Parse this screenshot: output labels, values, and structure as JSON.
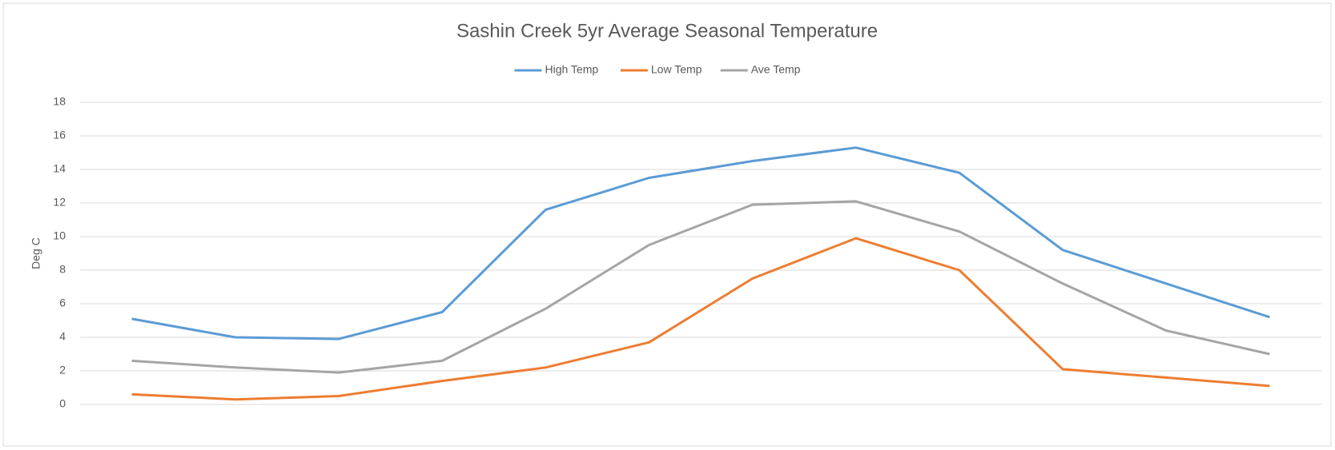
{
  "chart_data": {
    "type": "line",
    "title": "Sashin Creek 5yr Average Seasonal Temperature",
    "y_label": "Deg C",
    "categories": [
      null,
      null,
      null,
      null,
      null,
      null,
      null,
      null,
      null,
      null,
      null,
      null
    ],
    "series": [
      {
        "name": "High Temp",
        "color": "#5b9bd5",
        "values": [
          5.1,
          4.0,
          3.9,
          5.5,
          11.6,
          13.5,
          14.5,
          15.3,
          13.8,
          9.2,
          7.2,
          5.2
        ]
      },
      {
        "name": "Low Temp",
        "color": "#ed7d31",
        "values": [
          0.6,
          0.3,
          0.5,
          1.4,
          2.2,
          3.7,
          7.5,
          9.9,
          8.0,
          2.1,
          1.6,
          1.1
        ]
      },
      {
        "name": "Ave Temp",
        "color": "#a5a5a5",
        "values": [
          2.6,
          2.2,
          1.9,
          2.6,
          5.7,
          9.5,
          11.9,
          12.1,
          10.3,
          7.2,
          4.4,
          3.0
        ]
      }
    ],
    "ylim": [
      0,
      18
    ],
    "yticks": [
      0,
      2,
      4,
      6,
      8,
      10,
      12,
      14,
      16,
      18
    ],
    "grid": true,
    "legend": "top"
  }
}
